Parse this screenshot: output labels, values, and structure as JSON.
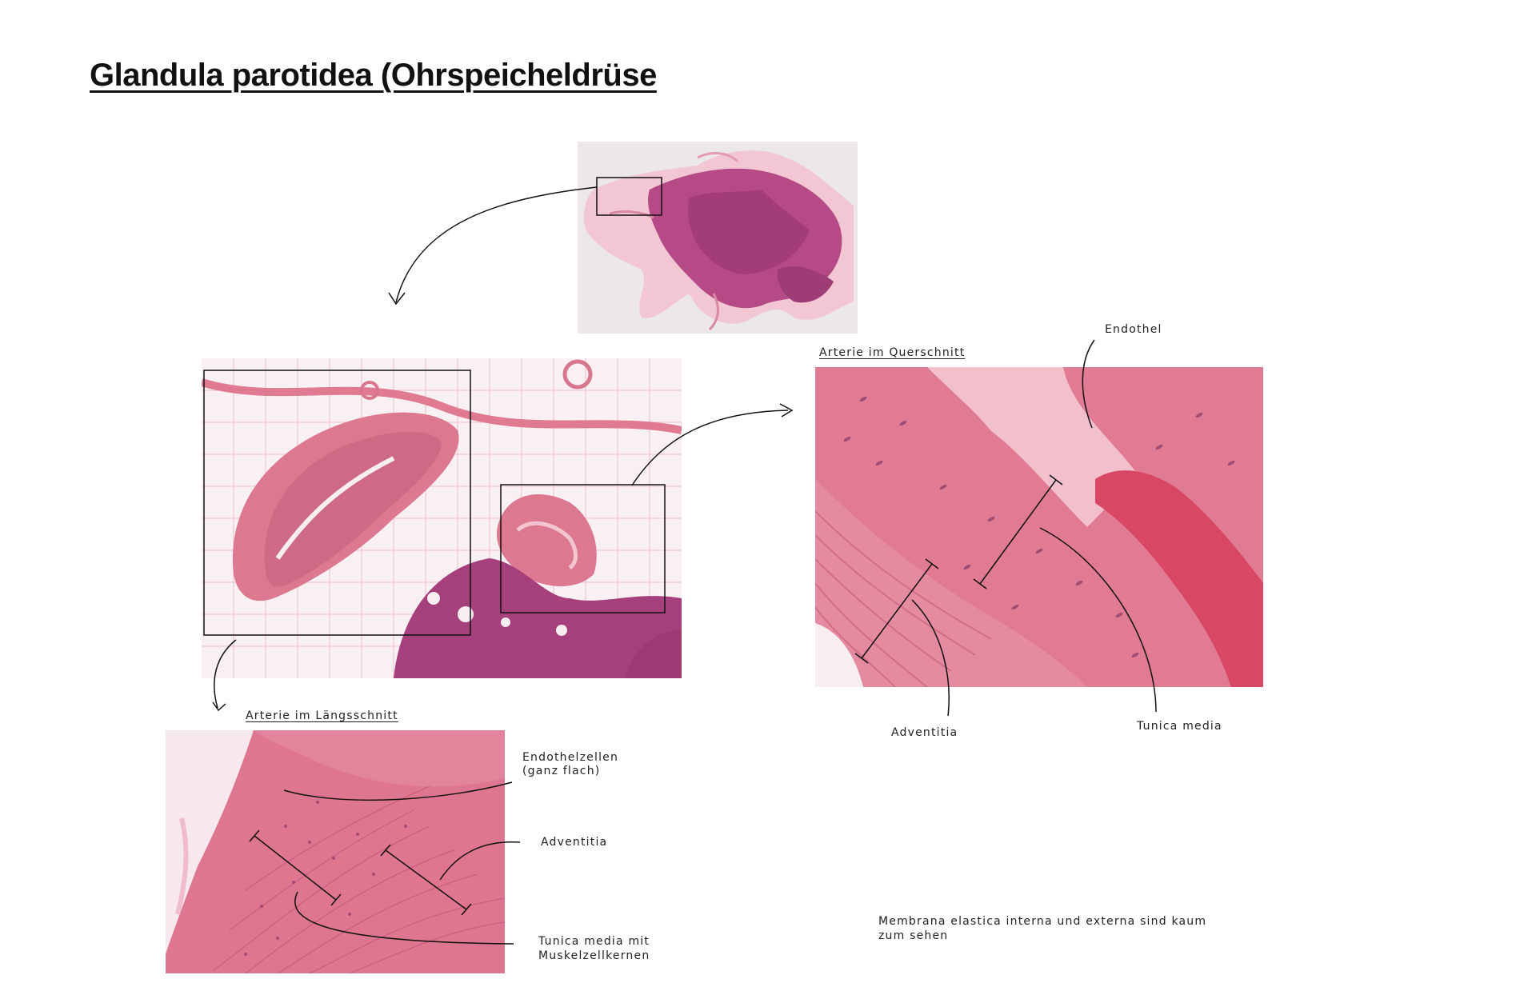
{
  "page": {
    "title": "Glandula parotidea (Ohrspeicheldrüse"
  },
  "panels": {
    "overview": {
      "image": "parotid-gland-overview-slide"
    },
    "medium": {
      "image": "parotid-gland-medium-magnification"
    },
    "longitudinal": {
      "heading": "Arterie im Längsschnitt",
      "image": "artery-longitudinal-section"
    },
    "cross": {
      "heading": "Arterie im Querschnitt",
      "image": "artery-cross-section"
    }
  },
  "labels": {
    "long_endothel_1": "Endothelzellen",
    "long_endothel_2": "(ganz flach)",
    "long_adventitia": "Adventitia",
    "long_media_1": "Tunica media mit",
    "long_media_2": "Muskelzellkernen",
    "cross_endothel": "Endothel",
    "cross_adventitia": "Adventitia",
    "cross_media": "Tunica media",
    "note_1": "Membrana elastica interna und externa sind kaum",
    "note_2": "zum sehen"
  },
  "colors": {
    "tissue_pink": "#e07a92",
    "tissue_purple": "#a8427c",
    "fat_white": "#f8f1f4",
    "lumen": "#f3c5d0",
    "blood": "#d94a66"
  }
}
